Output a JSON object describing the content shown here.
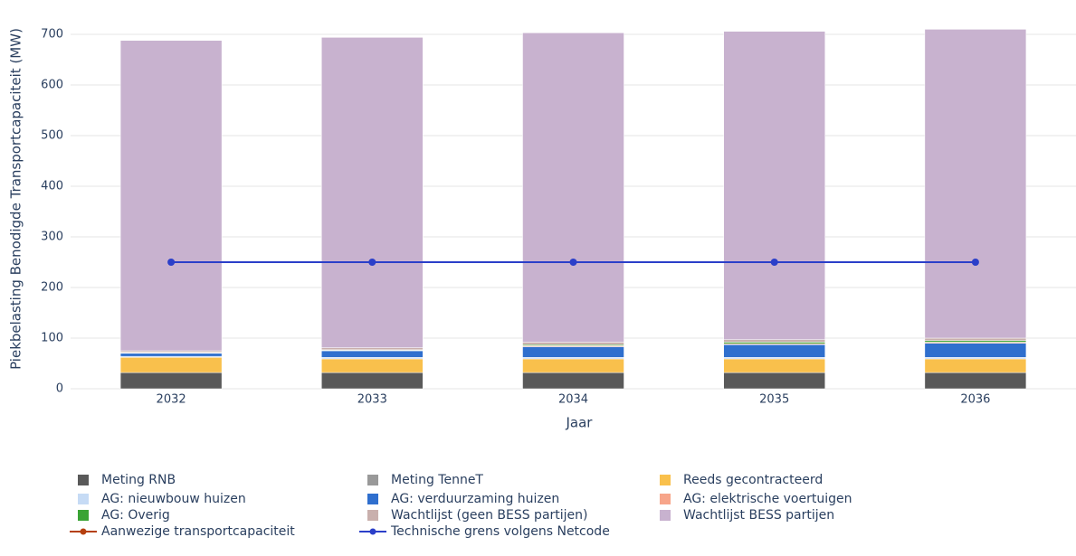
{
  "chart_data": {
    "type": "bar",
    "stacked": true,
    "x_label": "Jaar",
    "y_label": "Piekbelasting Benodigde Transportcapaciteit (MW)",
    "categories": [
      "2032",
      "2033",
      "2034",
      "2035",
      "2036"
    ],
    "ylim": [
      0,
      750
    ],
    "yticks": [
      0,
      100,
      200,
      300,
      400,
      500,
      600,
      700
    ],
    "grid": true,
    "series": [
      {
        "name": "Meting RNB",
        "type": "bar",
        "color": "#595959",
        "values": [
          32,
          32,
          32,
          32,
          32
        ]
      },
      {
        "name": "Meting TenneT",
        "type": "bar",
        "color": "#999999",
        "values": [
          0,
          0,
          0,
          0,
          0
        ]
      },
      {
        "name": "Reeds gecontracteerd",
        "type": "bar",
        "color": "#f9c04c",
        "values": [
          30,
          27,
          27,
          27,
          27
        ]
      },
      {
        "name": "AG: nieuwbouw huizen",
        "type": "bar",
        "color": "#c6dbf5",
        "values": [
          2,
          3,
          3,
          3,
          3
        ]
      },
      {
        "name": "AG: verduurzaming huizen",
        "type": "bar",
        "color": "#2f6fce",
        "values": [
          6,
          13,
          21,
          25,
          28
        ]
      },
      {
        "name": "AG: elektrische voertuigen",
        "type": "bar",
        "color": "#f7a58a",
        "values": [
          1,
          1,
          2,
          2,
          2
        ]
      },
      {
        "name": "AG: Overig",
        "type": "bar",
        "color": "#3aa335",
        "values": [
          1,
          1,
          2,
          3,
          3
        ]
      },
      {
        "name": "Wachtlijst (geen BESS partijen)",
        "type": "bar",
        "color": "#c9b0ad",
        "values": [
          3,
          4,
          5,
          5,
          5
        ]
      },
      {
        "name": "Wachtlijst BESS partijen",
        "type": "bar",
        "color": "#c8b2cf",
        "values": [
          613,
          613,
          611,
          609,
          610
        ]
      },
      {
        "name": "Aanwezige transportcapaciteit",
        "type": "line",
        "color": "#b5400f",
        "values": [
          null,
          null,
          null,
          null,
          null
        ]
      },
      {
        "name": "Technische grens volgens Netcode",
        "type": "line",
        "color": "#2b3fc9",
        "values": [
          250,
          250,
          250,
          250,
          250
        ]
      }
    ]
  }
}
